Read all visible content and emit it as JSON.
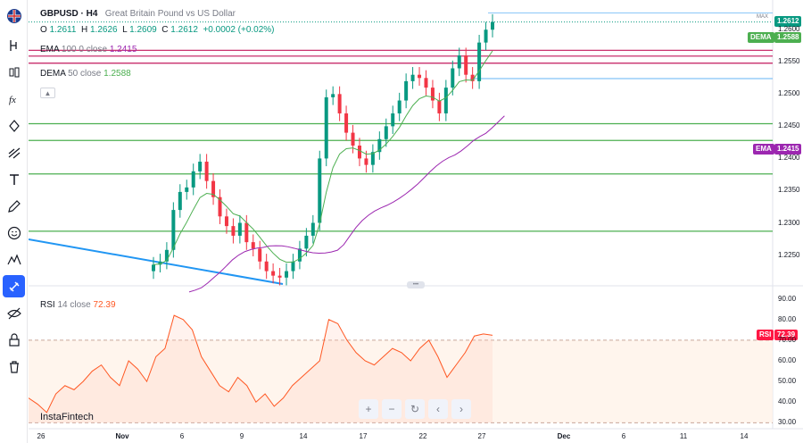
{
  "chart_data": [
    {
      "type": "candlestick",
      "symbol": "GBPUSD",
      "timeframe": "H4",
      "title": "GBPUSD · H4",
      "subtitle": "Great Britain Pound vs US Dollar",
      "ohlc": {
        "open": "1.2611",
        "high": "1.2626",
        "low": "1.2609",
        "close": "1.2612",
        "change": "+0.0002 (+0.02%)"
      },
      "y_ticks": [
        "1.2600",
        "1.2550",
        "1.2500",
        "1.2450",
        "1.2400",
        "1.2350",
        "1.2300",
        "1.2250"
      ],
      "ylim": [
        1.2205,
        1.2635
      ],
      "x_ticks": [
        "26",
        "Nov",
        "6",
        "9",
        "14",
        "17",
        "22",
        "27",
        "Dec",
        "6",
        "11",
        "14"
      ],
      "last_price": 1.2612,
      "indicators": [
        {
          "name": "EMA",
          "params": "100 0 close",
          "value": 1.2415,
          "color": "#9c27b0"
        },
        {
          "name": "DEMA",
          "params": "50 close",
          "value": 1.2588,
          "color": "#4caf50"
        }
      ],
      "resistance_lines": [
        1.2568,
        1.2559,
        1.2548
      ],
      "support_lines": [
        1.2454,
        1.2428,
        1.2376,
        1.2287
      ],
      "horizontal_line_blue": 1.2524,
      "trendline": {
        "from": [
          0,
          1.2275
        ],
        "to": [
          24,
          1.2205
        ]
      },
      "candles_close_path": [
        1.2235,
        1.224,
        1.2258,
        1.232,
        1.2348,
        1.2355,
        1.238,
        1.2395,
        1.2365,
        1.234,
        1.231,
        1.2295,
        1.228,
        1.23,
        1.227,
        1.226,
        1.224,
        1.2225,
        1.2218,
        1.2215,
        1.2225,
        1.224,
        1.226,
        1.228,
        1.23,
        1.24,
        1.2495,
        1.25,
        1.247,
        1.244,
        1.242,
        1.24,
        1.239,
        1.241,
        1.243,
        1.245,
        1.247,
        1.249,
        1.252,
        1.253,
        1.2525,
        1.251,
        1.249,
        1.247,
        1.251,
        1.254,
        1.256,
        1.253,
        1.252,
        1.258,
        1.26,
        1.2612
      ]
    },
    {
      "type": "line",
      "title": "RSI",
      "params": "14 close",
      "value": 72.39,
      "y_ticks": [
        "90.00",
        "80.00",
        "70.00",
        "60.00",
        "50.00",
        "40.00",
        "30.00"
      ],
      "ylim": [
        28,
        92
      ],
      "overbought": 70,
      "oversold": 30,
      "values": [
        42,
        39,
        35,
        44,
        48,
        46,
        50,
        55,
        58,
        52,
        48,
        60,
        56,
        50,
        62,
        66,
        82,
        80,
        75,
        62,
        55,
        48,
        45,
        52,
        48,
        40,
        44,
        38,
        42,
        48,
        52,
        56,
        60,
        80,
        78,
        70,
        64,
        60,
        58,
        62,
        66,
        64,
        60,
        66,
        70,
        62,
        52,
        58,
        64,
        72,
        73,
        72.39
      ]
    }
  ],
  "legend": {
    "symbol": "GBPUSD · H4",
    "description": "Great Britain Pound vs US Dollar",
    "o_label": "O",
    "o": "1.2611",
    "h_label": "H",
    "h": "1.2626",
    "l_label": "L",
    "l": "1.2609",
    "c_label": "C",
    "c": "1.2612",
    "change": "+0.0002 (+0.02%)",
    "ema_name": "EMA",
    "ema_params": "100 0 close",
    "ema_value": "1.2415",
    "dema_name": "DEMA",
    "dema_params": "50 close",
    "dema_value": "1.2588",
    "rsi_name": "RSI",
    "rsi_params": "14 close",
    "rsi_value": "72.39"
  },
  "price_scale": {
    "max_label": "MAX",
    "last_price_tag": "1.2612",
    "dema_tag": "DEMA",
    "dema_tag_value": "1.2588",
    "ema_tag": "EMA",
    "ema_tag_value": "1.2415",
    "rsi_tag": "RSI",
    "rsi_tag_value": "72.39",
    "ticks": [
      "1.2600",
      "1.2550",
      "1.2500",
      "1.2450",
      "1.2400",
      "1.2350",
      "1.2300",
      "1.2250"
    ],
    "rsi_ticks": [
      "90.00",
      "80.00",
      "70.00",
      "60.00",
      "50.00",
      "40.00",
      "30.00"
    ]
  },
  "time_scale": [
    "26",
    "Nov",
    "6",
    "9",
    "14",
    "17",
    "22",
    "27",
    "Dec",
    "6",
    "11",
    "14"
  ],
  "nav": {
    "zoom_in": "+",
    "zoom_out": "−",
    "reset": "↻",
    "left": "‹",
    "right": "›"
  },
  "brand": "InstaFintech",
  "colors": {
    "up": "#089981",
    "down": "#f23645",
    "accent": "#2962ff",
    "ema": "#9c27b0",
    "dema": "#4caf50",
    "resistance": "#c2185b",
    "support": "#4caf50",
    "rsi": "#ff5722",
    "trendline": "#2196f3"
  },
  "toolbar_icons": [
    "flag-uk-icon",
    "crosshair-icon",
    "trend-line-icon",
    "fib-icon",
    "pattern-icon",
    "forecast-icon",
    "text-icon",
    "brush-icon",
    "emoji-icon",
    "ruler-icon",
    "magnet-icon",
    "hide-icon",
    "lock-icon",
    "trash-icon"
  ]
}
